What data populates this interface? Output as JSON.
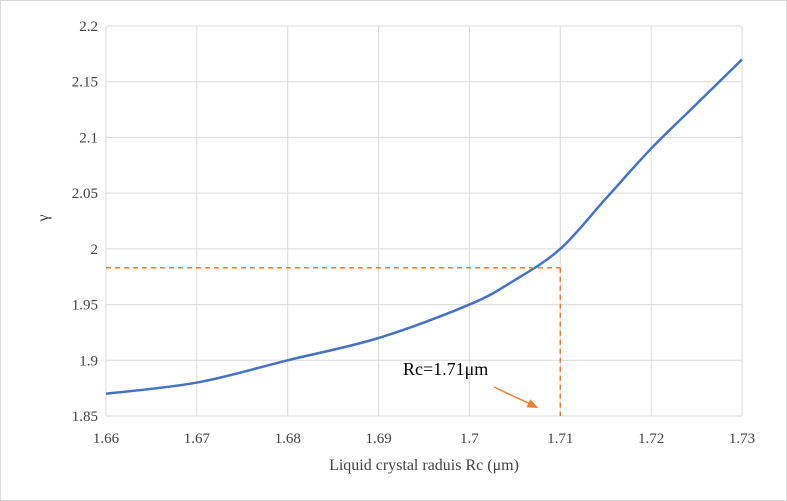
{
  "chart_data": {
    "type": "line",
    "xlabel": "Liquid crystal raduis Rc (μm)",
    "ylabel": "γ",
    "xlim": [
      1.66,
      1.73
    ],
    "ylim": [
      1.85,
      2.2
    ],
    "x_ticks": [
      "1.66",
      "1.67",
      "1.68",
      "1.69",
      "1.7",
      "1.71",
      "1.72",
      "1.73"
    ],
    "y_ticks": [
      "1.85",
      "1.9",
      "1.95",
      "2",
      "2.05",
      "2.1",
      "2.15",
      "2.2"
    ],
    "grid": true,
    "series": [
      {
        "color": "#4472c4",
        "x": [
          1.66,
          1.67,
          1.68,
          1.69,
          1.7,
          1.705,
          1.71,
          1.715,
          1.72,
          1.725,
          1.73
        ],
        "y": [
          1.87,
          1.88,
          1.9,
          1.92,
          1.95,
          1.972,
          2.0,
          2.045,
          2.09,
          2.13,
          2.17
        ]
      }
    ],
    "annotation": {
      "text": "Rc=1.71μm",
      "x": 1.71,
      "y": 1.983,
      "color": "#ed7d31"
    }
  }
}
